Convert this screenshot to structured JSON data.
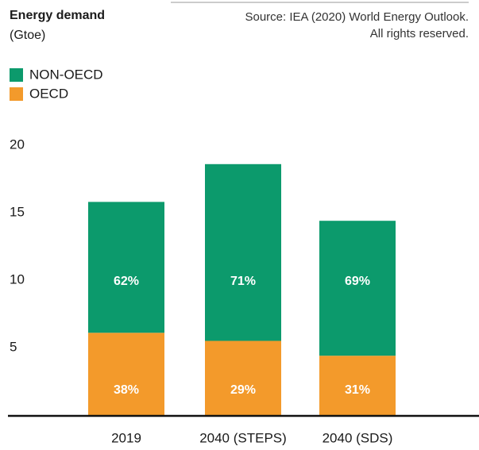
{
  "chart_data": {
    "type": "stacked_bar",
    "title": "Energy demand",
    "subtitle": "(Gtoe)",
    "source": [
      "Source: IEA (2020) World Energy Outlook.",
      "All rights reserved."
    ],
    "categories": [
      "2019",
      "2040 (STEPS)",
      "2040 (SDS)"
    ],
    "series": [
      {
        "name": "OECD",
        "color": "#f39a2b",
        "values": [
          6.1,
          5.5,
          4.4
        ],
        "segment_labels": [
          "38%",
          "29%",
          "31%"
        ]
      },
      {
        "name": "NON-OECD",
        "color": "#0c9a6c",
        "values": [
          9.7,
          13.1,
          10.0
        ],
        "segment_labels": [
          "62%",
          "71%",
          "69%"
        ]
      }
    ],
    "ylim": [
      0,
      20
    ],
    "yticks": [
      5,
      10,
      15,
      20
    ],
    "grid": false
  }
}
